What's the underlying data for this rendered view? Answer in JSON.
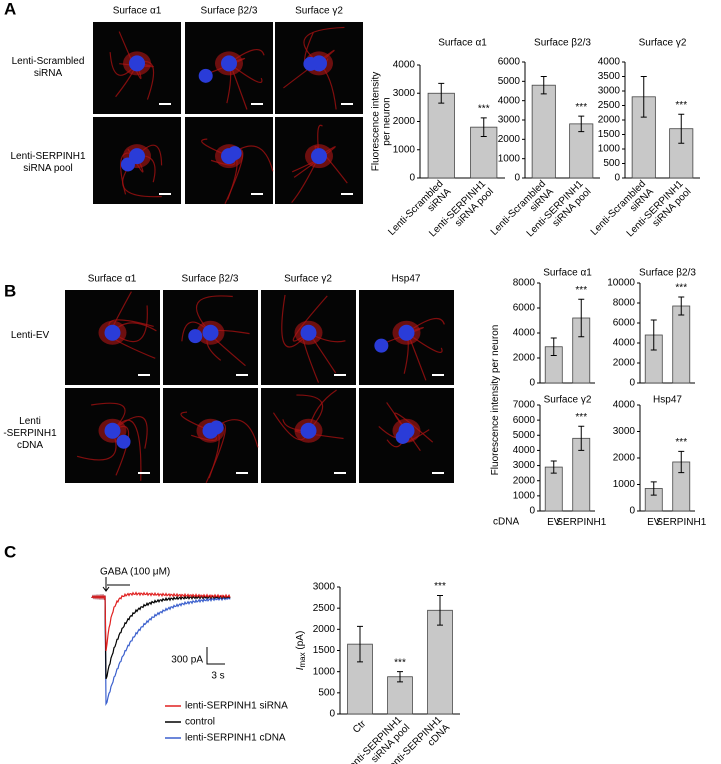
{
  "panel_labels": [
    "A",
    "B",
    "C"
  ],
  "panel_a_images": {
    "columns": [
      "Surface α1",
      "Surface β2/3",
      "Surface γ2"
    ],
    "rows": [
      [
        "Lenti-Scrambled",
        "siRNA"
      ],
      [
        "Lenti-SERPINH1",
        "siRNA pool"
      ]
    ]
  },
  "panel_b_images": {
    "columns": [
      "Surface α1",
      "Surface β2/3",
      "Surface γ2",
      "Hsp47"
    ],
    "rows": [
      [
        "Lenti-EV"
      ],
      [
        "Lenti",
        "-SERPINH1",
        "cDNA"
      ]
    ]
  },
  "panel_c_traces": {
    "stimulus": "GABA (100 μM)",
    "scale_current": "300 pA",
    "scale_time": "3 s",
    "legend": [
      {
        "name": "lenti-SERPINH1 siRNA",
        "color": "#e02020"
      },
      {
        "name": "control",
        "color": "#000000"
      },
      {
        "name": "lenti-SERPINH1 cDNA",
        "color": "#3a5fcd"
      }
    ]
  },
  "chart_data": [
    {
      "type": "bar",
      "title": "Surface α1",
      "ylabel": [
        "Fluorescence intensity",
        "per neuron"
      ],
      "categories": [
        [
          "Lenti-Scrambled",
          "siRNA"
        ],
        [
          "Lenti-SERPINH1",
          "siRNA pool"
        ]
      ],
      "values": [
        3000,
        1800
      ],
      "errors": [
        350,
        330
      ],
      "annotations": [
        null,
        "***"
      ],
      "ylim": [
        0,
        4000
      ],
      "yticks": [
        0,
        1000,
        2000,
        3000,
        4000
      ],
      "color": "#c8c8c8"
    },
    {
      "type": "bar",
      "title": "Surface β2/3",
      "categories": [
        [
          "Lenti-Scrambled",
          "siRNA"
        ],
        [
          "Lenti-SERPINH1",
          "siRNA pool"
        ]
      ],
      "values": [
        4800,
        2800
      ],
      "errors": [
        450,
        400
      ],
      "annotations": [
        null,
        "***"
      ],
      "ylim": [
        0,
        6000
      ],
      "yticks": [
        0,
        1000,
        2000,
        3000,
        4000,
        5000,
        6000
      ],
      "color": "#c8c8c8"
    },
    {
      "type": "bar",
      "title": "Surface γ2",
      "categories": [
        [
          "Lenti-Scrambled",
          "siRNA"
        ],
        [
          "Lenti-SERPINH1",
          "siRNA pool"
        ]
      ],
      "values": [
        2800,
        1700
      ],
      "errors": [
        700,
        500
      ],
      "annotations": [
        null,
        "***"
      ],
      "ylim": [
        0,
        4000
      ],
      "yticks": [
        0,
        500,
        1000,
        1500,
        2000,
        2500,
        3000,
        3500,
        4000
      ],
      "color": "#c8c8c8"
    },
    {
      "type": "bar",
      "title": "Surface α1",
      "ylabel": [
        "Fluorescence intensity per neuron"
      ],
      "categories": [
        null,
        null
      ],
      "values": [
        2900,
        5200
      ],
      "errors": [
        700,
        1500
      ],
      "annotations": [
        null,
        "***"
      ],
      "ylim": [
        0,
        8000
      ],
      "yticks": [
        0,
        2000,
        4000,
        6000,
        8000
      ],
      "color": "#c8c8c8"
    },
    {
      "type": "bar",
      "title": "Surface β2/3",
      "categories": [
        null,
        null
      ],
      "values": [
        4800,
        7700
      ],
      "errors": [
        1500,
        900
      ],
      "annotations": [
        null,
        "***"
      ],
      "ylim": [
        0,
        10000
      ],
      "yticks": [
        0,
        2000,
        4000,
        6000,
        8000,
        10000
      ],
      "color": "#c8c8c8"
    },
    {
      "type": "bar",
      "title": "Surface γ2",
      "xlabel": "cDNA",
      "categories": [
        [
          "EV"
        ],
        [
          "SERPINH1"
        ]
      ],
      "values": [
        2900,
        4800
      ],
      "errors": [
        400,
        800
      ],
      "annotations": [
        null,
        "***"
      ],
      "ylim": [
        0,
        7000
      ],
      "yticks": [
        0,
        1000,
        2000,
        3000,
        4000,
        5000,
        6000,
        7000
      ],
      "color": "#c8c8c8"
    },
    {
      "type": "bar",
      "title": "Hsp47",
      "categories": [
        [
          "EV"
        ],
        [
          "SERPINH1"
        ]
      ],
      "values": [
        850,
        1850
      ],
      "errors": [
        250,
        400
      ],
      "annotations": [
        null,
        "***"
      ],
      "ylim": [
        0,
        4000
      ],
      "yticks": [
        0,
        1000,
        2000,
        3000,
        4000
      ],
      "color": "#c8c8c8"
    },
    {
      "type": "bar",
      "ylabel_parts": {
        "symbol": "I",
        "subscript": "max",
        "unit": " (pA)"
      },
      "categories": [
        [
          "Ctr"
        ],
        [
          "Lenti-SERPINH1",
          "siRNA pool"
        ],
        [
          "Lenti-SERPINH1",
          "cDNA"
        ]
      ],
      "values": [
        1650,
        880,
        2450
      ],
      "errors": [
        420,
        120,
        350
      ],
      "annotations": [
        null,
        "***",
        "***"
      ],
      "ylim": [
        0,
        3000
      ],
      "yticks": [
        0,
        500,
        1000,
        1500,
        2000,
        2500,
        3000
      ],
      "color": "#c8c8c8"
    }
  ]
}
